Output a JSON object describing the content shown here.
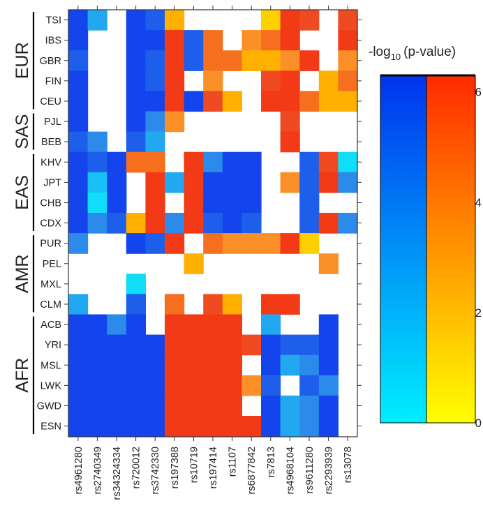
{
  "chart_data": {
    "type": "heatmap",
    "legend_title_main": "-log",
    "legend_title_sub": "10",
    "legend_title_rest": "(p-value)",
    "legend_ticks": [
      0,
      2,
      4,
      6
    ],
    "legend_range": [
      0,
      6.3
    ],
    "colorbars": [
      {
        "name": "blue-scale",
        "low_color": "#00eeff",
        "high_color": "#0033ee"
      },
      {
        "name": "red-scale",
        "low_color": "#ffff00",
        "high_color": "#ff2a00"
      }
    ],
    "snps": [
      "rs4961280",
      "rs2740349",
      "rs34324334",
      "rs720012",
      "rs3742330",
      "rs197388",
      "rs10719",
      "rs197414",
      "rs1107",
      "rs6877842",
      "rs7813",
      "rs4968104",
      "rs9611280",
      "rs2293939",
      "rs13078"
    ],
    "populations": [
      "TSI",
      "IBS",
      "GBR",
      "FIN",
      "CEU",
      "PJL",
      "BEB",
      "KHV",
      "JPT",
      "CHB",
      "CDX",
      "PUR",
      "PEL",
      "MXL",
      "CLM",
      "ACB",
      "YRI",
      "MSL",
      "LWK",
      "GWD",
      "ESN"
    ],
    "groups": [
      {
        "label": "EUR",
        "from": 0,
        "to": 4
      },
      {
        "label": "SAS",
        "from": 5,
        "to": 6
      },
      {
        "label": "EAS",
        "from": 7,
        "to": 10
      },
      {
        "label": "AMR",
        "from": 11,
        "to": 14
      },
      {
        "label": "AFR",
        "from": 15,
        "to": 20
      }
    ],
    "values": [
      [
        "B6",
        "B3",
        null,
        "B6",
        "B5",
        "R2",
        null,
        null,
        null,
        null,
        "R1",
        "R6",
        "R5",
        null,
        "R5"
      ],
      [
        "B6",
        null,
        null,
        "B6",
        "B6",
        "R6",
        "B5",
        "R4",
        null,
        "R3",
        "R4",
        "R6",
        null,
        null,
        "R6"
      ],
      [
        "B5",
        null,
        null,
        "B6",
        "B5",
        "R6",
        "B5",
        "R4",
        "R4",
        "R2",
        "R2",
        "R3",
        "R6",
        null,
        "R3"
      ],
      [
        "B6",
        null,
        null,
        "B6",
        "B5",
        "R6",
        null,
        "R3",
        null,
        null,
        "R5",
        "R6",
        null,
        "R2",
        "R4"
      ],
      [
        "B6",
        null,
        null,
        "B6",
        "B6",
        "R6",
        "B6",
        "R5",
        "R2",
        null,
        "R6",
        "R6",
        "R4",
        "R2",
        "R2"
      ],
      [
        "B6",
        null,
        null,
        "B6",
        "B4",
        "R3",
        null,
        null,
        null,
        null,
        null,
        "R5",
        null,
        null,
        null
      ],
      [
        "B5",
        "B4",
        null,
        "B5",
        "B3",
        null,
        null,
        null,
        null,
        null,
        null,
        "R6",
        null,
        null,
        null
      ],
      [
        "B6",
        "B5",
        "B6",
        "R4",
        "R4",
        null,
        "R6",
        "B4",
        "B6",
        "B6",
        null,
        null,
        "B5",
        "R5",
        "B1"
      ],
      [
        "B6",
        "B2",
        "B6",
        null,
        "R6",
        "B3",
        "R6",
        "B6",
        "B6",
        "B6",
        null,
        "R3",
        "B5",
        "R6",
        "B4"
      ],
      [
        "B6",
        "B1",
        "B6",
        null,
        "R6",
        null,
        "R6",
        "B6",
        "B6",
        "B6",
        null,
        null,
        "B5",
        null,
        null
      ],
      [
        "B6",
        "B4",
        "B5",
        "R2",
        "R6",
        "B4",
        "R6",
        "B5",
        "B6",
        "B5",
        null,
        null,
        "B5",
        "R6",
        "B4"
      ],
      [
        "B4",
        null,
        null,
        "B6",
        "B5",
        "R6",
        null,
        "R4",
        "R3",
        "R3",
        "R3",
        "R6",
        "R1",
        null,
        null
      ],
      [
        null,
        null,
        null,
        null,
        null,
        null,
        "R2",
        null,
        null,
        null,
        null,
        null,
        null,
        "R3",
        null
      ],
      [
        null,
        null,
        null,
        "B1",
        null,
        null,
        null,
        null,
        null,
        null,
        null,
        null,
        null,
        null,
        null
      ],
      [
        "B3",
        null,
        null,
        "B5",
        null,
        "R4",
        null,
        "R5",
        "R2",
        null,
        "R6",
        "R6",
        null,
        null,
        null
      ],
      [
        "B6",
        "B6",
        "B4",
        "B6",
        null,
        "R6",
        "R6",
        "R6",
        "R6",
        null,
        "B3",
        null,
        null,
        "B6",
        null
      ],
      [
        "B6",
        "B6",
        "B6",
        "B6",
        "B6",
        "R6",
        "R6",
        "R6",
        "R6",
        "R5",
        "B6",
        "B5",
        "B5",
        "B6",
        null
      ],
      [
        "B6",
        "B6",
        "B6",
        "B6",
        "B6",
        "R6",
        "R6",
        "R6",
        "R6",
        null,
        "B6",
        "B3",
        "B4",
        "B6",
        null
      ],
      [
        "B6",
        "B6",
        "B6",
        "B6",
        "B6",
        "R6",
        "R6",
        "R6",
        "R6",
        "R3",
        "B5",
        null,
        "B5",
        "B4",
        null
      ],
      [
        "B6",
        "B6",
        "B6",
        "B6",
        "B6",
        "R6",
        "R6",
        "R6",
        "R6",
        null,
        "B6",
        "B3",
        "B4",
        "B6",
        null
      ],
      [
        "B6",
        "B6",
        "B6",
        "B6",
        "B6",
        "R6",
        "R6",
        "R6",
        "R6",
        "R6",
        "B6",
        "B3",
        "B4",
        "B6",
        null
      ]
    ]
  },
  "palette": {
    "B1": "#10ddfa",
    "B2": "#18c0f6",
    "B3": "#22a8f0",
    "B4": "#2b8aea",
    "B5": "#1d5fea",
    "B6": "#1444ec",
    "R1": "#ffd000",
    "R2": "#ffb000",
    "R3": "#fb9028",
    "R4": "#f56f1e",
    "R5": "#f04a22",
    "R6": "#f23a17"
  }
}
